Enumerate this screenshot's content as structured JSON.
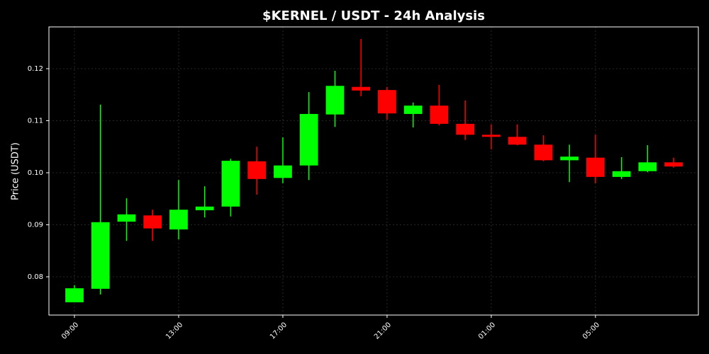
{
  "chart_data": {
    "type": "candlestick",
    "title": "$KERNEL / USDT - 24h Analysis",
    "y_label": "Price (USDT)",
    "categories": [
      "09:00",
      null,
      null,
      null,
      "13:00",
      null,
      null,
      null,
      "17:00",
      null,
      null,
      null,
      "21:00",
      null,
      null,
      null,
      "01:00",
      null,
      null,
      null,
      "05:00",
      null,
      null,
      null
    ],
    "open": [
      0.0751,
      0.0777,
      0.0906,
      0.0918,
      0.0891,
      0.0928,
      0.0935,
      0.1022,
      0.099,
      0.1014,
      0.1112,
      0.1165,
      0.1159,
      0.1113,
      0.1129,
      0.1094,
      0.1073,
      0.1069,
      0.1054,
      0.1024,
      0.1029,
      0.0992,
      0.1003,
      0.102
    ],
    "high": [
      0.0784,
      0.1131,
      0.0951,
      0.0929,
      0.0986,
      0.0974,
      0.1027,
      0.105,
      0.1068,
      0.1155,
      0.1196,
      0.1257,
      0.1165,
      0.1135,
      0.1169,
      0.1139,
      0.1093,
      0.1093,
      0.1072,
      0.1054,
      0.1073,
      0.103,
      0.1053,
      0.1029
    ],
    "low": [
      0.0751,
      0.0766,
      0.0869,
      0.0869,
      0.0872,
      0.0914,
      0.0916,
      0.0958,
      0.098,
      0.0986,
      0.1088,
      0.1147,
      0.1102,
      0.1087,
      0.1091,
      0.1063,
      0.1045,
      0.1053,
      0.1022,
      0.0982,
      0.098,
      0.0988,
      0.1001,
      0.101
    ],
    "close": [
      0.0778,
      0.0905,
      0.092,
      0.0893,
      0.0929,
      0.0935,
      0.1023,
      0.0988,
      0.1014,
      0.1113,
      0.1167,
      0.1158,
      0.1114,
      0.1129,
      0.1094,
      0.1073,
      0.1069,
      0.1054,
      0.1024,
      0.1031,
      0.0992,
      0.1003,
      0.102,
      0.1012
    ],
    "up_color": "#00ff00",
    "down_color": "#ff0000",
    "ylim": [
      0.07265,
      0.12803
    ],
    "yticks": [
      0.08,
      0.09,
      {
        "value": 0.1,
        "label": "0.10"
      },
      0.11,
      0.12
    ],
    "grid": true
  }
}
